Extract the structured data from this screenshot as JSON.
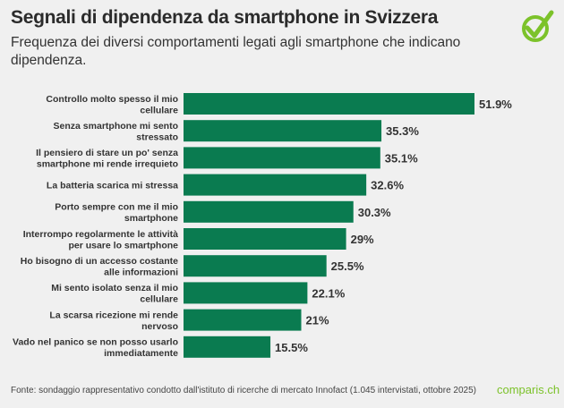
{
  "title": "Segnali di dipendenza da smartphone in Svizzera",
  "subtitle": "Frequenza dei diversi comportamenti legati agli smartphone che indicano dipendenza.",
  "source": "Fonte: sondaggio rappresentativo condotto dall'istituto di ricerche di mercato Innofact (1.045 intervistati, ottobre 2025)",
  "brand": "comparis.ch",
  "colors": {
    "bar": "#0a7b50",
    "background": "#f0f0f0",
    "brand": "#7cc22a"
  },
  "chart_data": {
    "type": "bar",
    "orientation": "horizontal",
    "categories": [
      [
        "Controllo molto spesso il mio",
        "cellulare"
      ],
      [
        "Senza smartphone mi sento",
        "stressato"
      ],
      [
        "Il pensiero di stare un po' senza",
        "smartphone mi rende irrequieto"
      ],
      [
        "La batteria scarica mi stressa"
      ],
      [
        "Porto sempre con me il mio",
        "smartphone"
      ],
      [
        "Interrompo regolarmente le attività",
        "per usare lo smartphone"
      ],
      [
        "Ho bisogno di un accesso costante",
        "alle informazioni"
      ],
      [
        "Mi sento isolato senza il mio",
        "cellulare"
      ],
      [
        "La scarsa ricezione mi rende",
        "nervoso"
      ],
      [
        "Vado nel panico se non posso usarlo",
        "immediatamente"
      ]
    ],
    "values": [
      51.9,
      35.3,
      35.1,
      32.6,
      30.3,
      29,
      25.5,
      22.1,
      21,
      15.5
    ],
    "labels": [
      "51.9%",
      "35.3%",
      "35.1%",
      "32.6%",
      "30.3%",
      "29%",
      "25.5%",
      "22.1%",
      "21%",
      "15.5%"
    ],
    "grid": false
  }
}
